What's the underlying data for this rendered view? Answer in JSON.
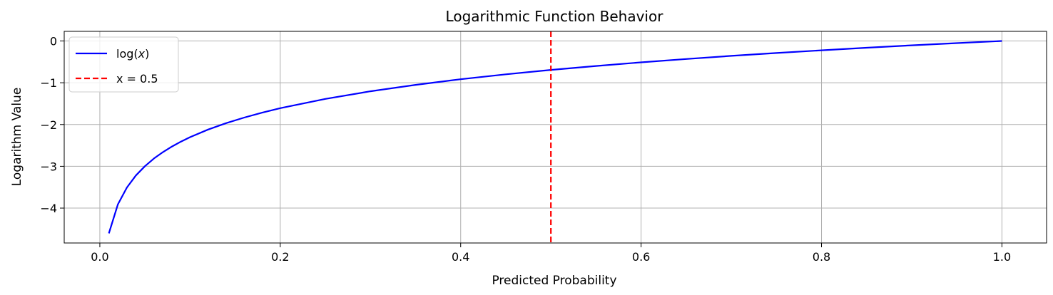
{
  "chart_data": {
    "type": "line",
    "title": "Logarithmic Function Behavior",
    "xlabel": "Predicted Probability",
    "ylabel": "Logarithm Value",
    "xlim": [
      -0.0395,
      1.0495
    ],
    "ylim": [
      -4.835,
      0.23
    ],
    "grid": true,
    "legend_position": "upper-left",
    "x_ticks": [
      {
        "value": 0.0,
        "label": "0.0"
      },
      {
        "value": 0.2,
        "label": "0.2"
      },
      {
        "value": 0.4,
        "label": "0.4"
      },
      {
        "value": 0.6,
        "label": "0.6"
      },
      {
        "value": 0.8,
        "label": "0.8"
      },
      {
        "value": 1.0,
        "label": "1.0"
      }
    ],
    "y_ticks": [
      {
        "value": 0,
        "label": "0"
      },
      {
        "value": -1,
        "label": "−1"
      },
      {
        "value": -2,
        "label": "−2"
      },
      {
        "value": -3,
        "label": "−3"
      },
      {
        "value": -4,
        "label": "−4"
      }
    ],
    "series": [
      {
        "name": "log(x)",
        "name_prefix": "log(",
        "name_var": "x",
        "name_suffix": ")",
        "color": "#0000ff",
        "style": "solid",
        "x": [
          0.01,
          0.02,
          0.03,
          0.04,
          0.05,
          0.06,
          0.07,
          0.08,
          0.09,
          0.1,
          0.12,
          0.14,
          0.16,
          0.18,
          0.2,
          0.25,
          0.3,
          0.35,
          0.4,
          0.45,
          0.5,
          0.55,
          0.6,
          0.65,
          0.7,
          0.75,
          0.8,
          0.85,
          0.9,
          0.95,
          1.0
        ],
        "y": [
          -4.605,
          -3.912,
          -3.507,
          -3.219,
          -2.996,
          -2.813,
          -2.659,
          -2.526,
          -2.408,
          -2.303,
          -2.12,
          -1.966,
          -1.833,
          -1.715,
          -1.609,
          -1.386,
          -1.204,
          -1.05,
          -0.916,
          -0.799,
          -0.693,
          -0.598,
          -0.511,
          -0.431,
          -0.357,
          -0.288,
          -0.223,
          -0.163,
          -0.105,
          -0.051,
          0.0
        ]
      },
      {
        "name": "x = 0.5",
        "color": "#ff0000",
        "style": "dashed",
        "vline_x": 0.5
      }
    ]
  }
}
